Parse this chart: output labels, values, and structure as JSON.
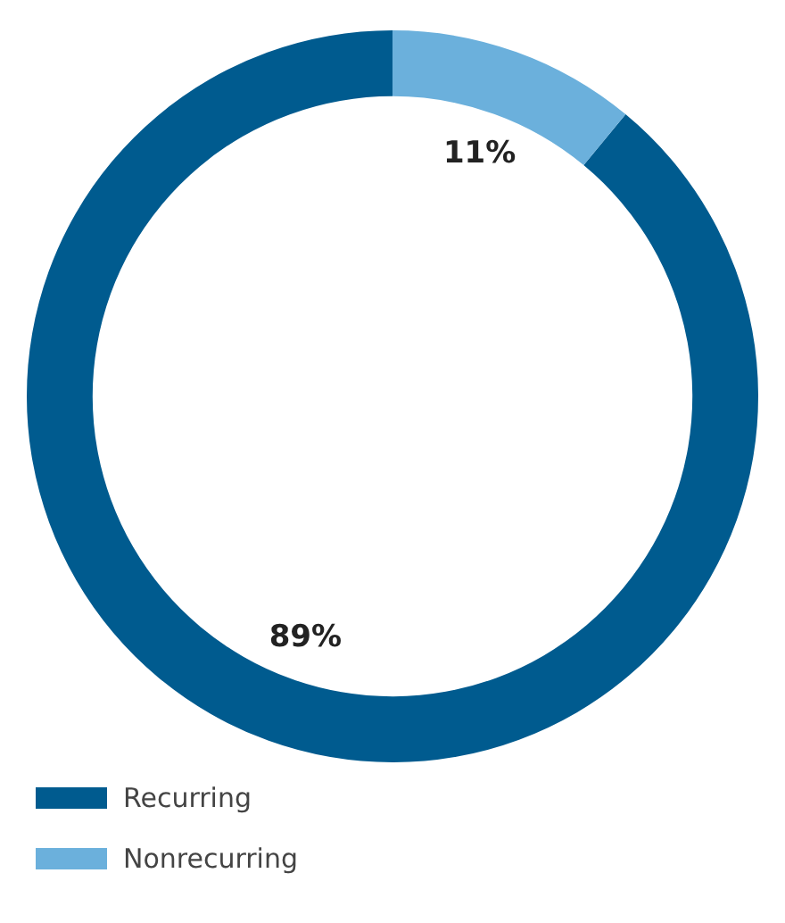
{
  "chart_data": {
    "type": "donut",
    "categories": [
      "Recurring",
      "Nonrecurring"
    ],
    "values": [
      89,
      11
    ],
    "colors": [
      "#005b8f",
      "#6bb0dc"
    ],
    "value_labels": [
      "89%",
      "11%"
    ],
    "legend": "bottom left"
  }
}
